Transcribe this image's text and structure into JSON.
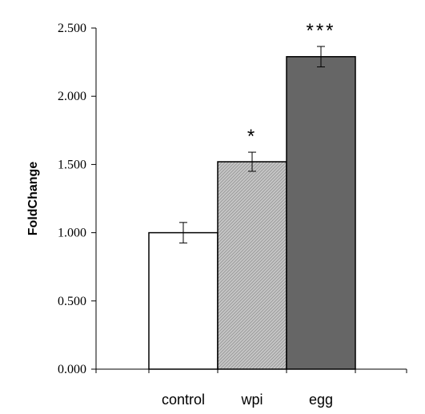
{
  "chart_data": {
    "type": "bar",
    "title": "",
    "xlabel": "",
    "ylabel": "FoldChange",
    "categories": [
      "control",
      "wpi",
      "egg"
    ],
    "values": [
      1.0,
      1.52,
      2.29
    ],
    "errors": [
      0.075,
      0.07,
      0.075
    ],
    "significance": [
      "",
      "*",
      "***"
    ],
    "ylim": [
      0,
      2.5
    ],
    "yticks": [
      0,
      0.5,
      1.0,
      1.5,
      2.0,
      2.5
    ],
    "ytick_labels": [
      "0.000",
      "0.500",
      "1.000",
      "1.500",
      "2.000",
      "2.500"
    ],
    "bar_fills": [
      "#ffffff",
      "#c8c8c8",
      "#666666"
    ],
    "bar_patterns": [
      "none",
      "diagonal-hatch",
      "none"
    ],
    "grid": false,
    "legend": "none"
  }
}
